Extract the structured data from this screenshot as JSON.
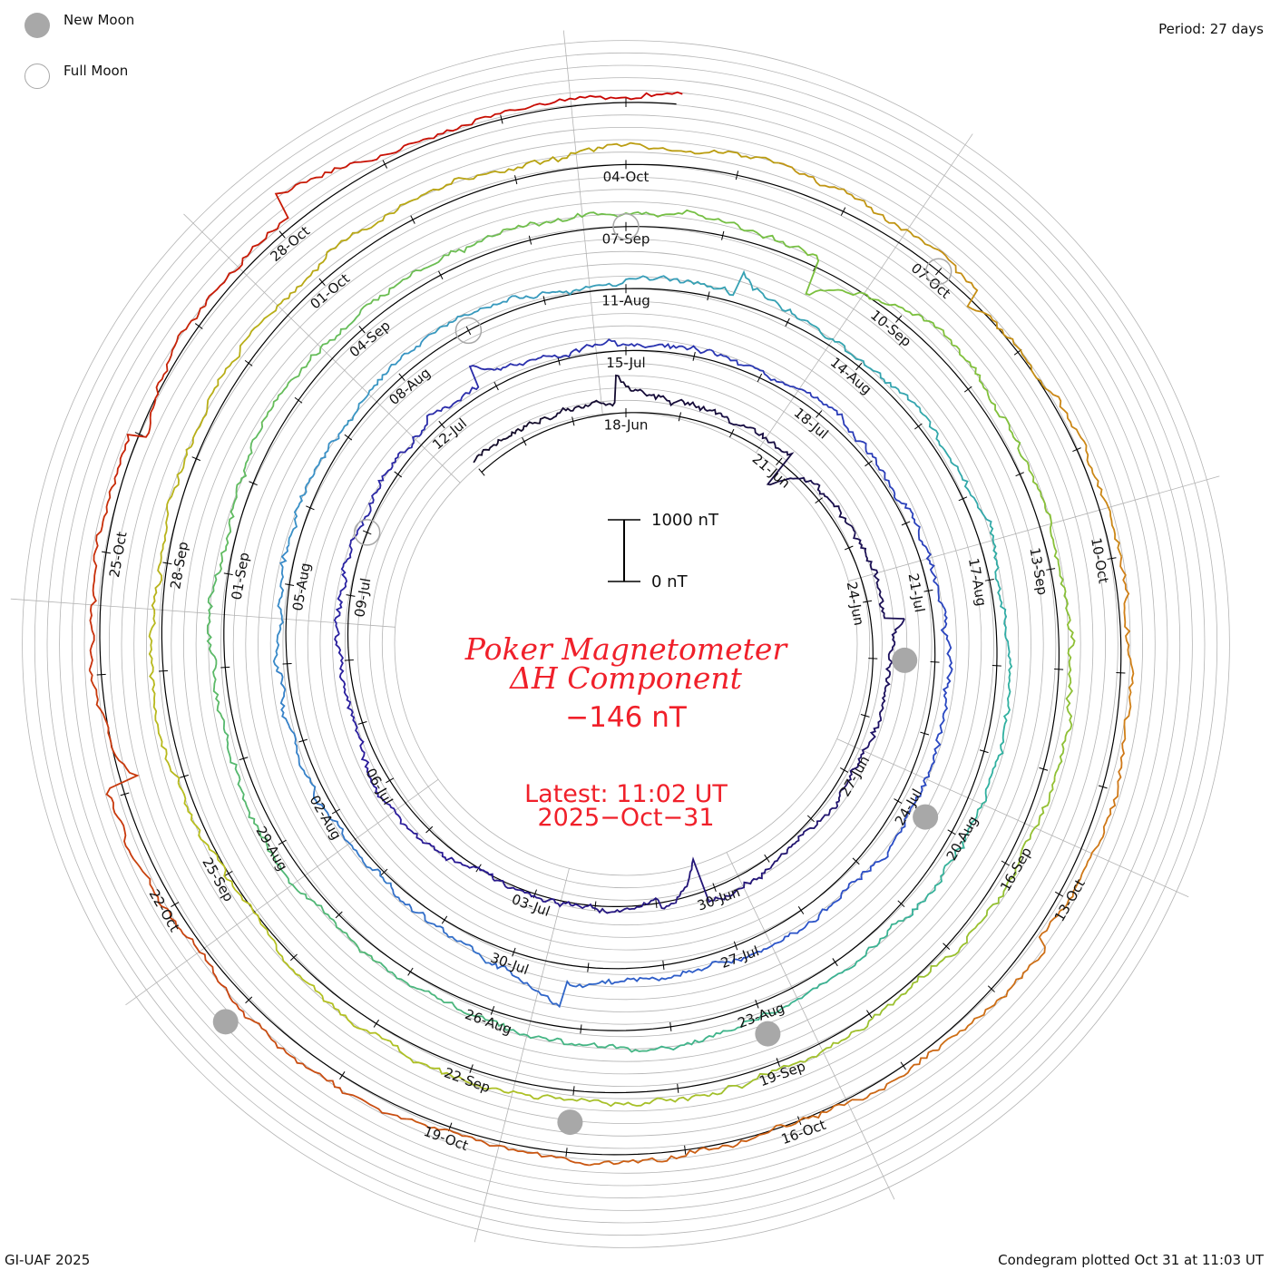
{
  "legend": {
    "new_moon": "New Moon",
    "full_moon": "Full Moon"
  },
  "period_label": "Period: 27 days",
  "footer": {
    "left": "GI-UAF 2025",
    "right": "Condegram plotted Oct 31 at 11:03 UT"
  },
  "title": {
    "line1": "Poker Magnetometer",
    "line2": "ΔH Component"
  },
  "current_value": "−146 nT",
  "latest": {
    "line1": "Latest: 11:02 UT",
    "line2": "2025−Oct−31"
  },
  "scale_bar": {
    "top_label": "1000 nT",
    "bottom_label": "0 nT"
  },
  "colors": {
    "title": "#f0202a",
    "grid": "#b4b4b4",
    "baseline": "#000000",
    "moon": "#a8a8a8"
  },
  "chart_data": {
    "type": "line",
    "subtype": "condegram-spiral",
    "title": "Poker Magnetometer ΔH Component",
    "period_days": 27,
    "reference_date": "2025-06-18",
    "start_date": "2025-06-15",
    "end_date": "2025-10-31T11:02",
    "latest_value_nT": -146,
    "scale_bar_nT": [
      0,
      1000
    ],
    "date_labels": [
      "18-Jun",
      "21-Jun",
      "24-Jun",
      "27-Jun",
      "30-Jun",
      "03-Jul",
      "06-Jul",
      "09-Jul",
      "12-Jul",
      "15-Jul",
      "18-Jul",
      "21-Jul",
      "24-Jul",
      "27-Jul",
      "30-Jul",
      "02-Aug",
      "05-Aug",
      "08-Aug",
      "11-Aug",
      "14-Aug",
      "17-Aug",
      "20-Aug",
      "23-Aug",
      "26-Aug",
      "29-Aug",
      "01-Sep",
      "04-Sep",
      "07-Sep",
      "10-Sep",
      "13-Sep",
      "16-Sep",
      "19-Sep",
      "22-Sep",
      "25-Sep",
      "28-Sep",
      "01-Oct",
      "04-Oct",
      "07-Oct",
      "10-Oct",
      "13-Oct",
      "16-Oct",
      "19-Oct",
      "22-Oct",
      "25-Oct",
      "28-Oct"
    ],
    "new_moons": [
      "2025-06-25",
      "2025-07-24",
      "2025-08-23",
      "2025-09-21",
      "2025-10-21"
    ],
    "full_moons": [
      "2025-07-10",
      "2025-08-09",
      "2025-09-07",
      "2025-10-07"
    ],
    "color_stops": [
      {
        "date": "2025-06-15",
        "color": "#120a28"
      },
      {
        "date": "2025-07-05",
        "color": "#2a1a9a"
      },
      {
        "date": "2025-07-25",
        "color": "#2a50c8"
      },
      {
        "date": "2025-08-05",
        "color": "#3a90c8"
      },
      {
        "date": "2025-08-18",
        "color": "#30b0a0"
      },
      {
        "date": "2025-09-08",
        "color": "#78c040"
      },
      {
        "date": "2025-09-24",
        "color": "#b8c020"
      },
      {
        "date": "2025-10-03",
        "color": "#b8a010"
      },
      {
        "date": "2025-10-10",
        "color": "#d08018"
      },
      {
        "date": "2025-10-20",
        "color": "#c84a10"
      },
      {
        "date": "2025-10-31",
        "color": "#c80000"
      }
    ]
  }
}
